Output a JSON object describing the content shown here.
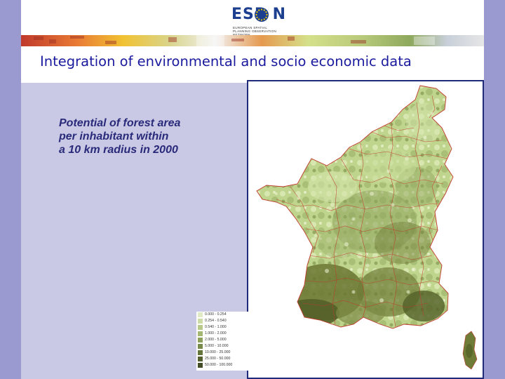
{
  "header": {
    "logo_text": "ESP N",
    "logo_subtitle": "EUROPEAN SPATIAL PLANNING OBSERVATION NETWORK"
  },
  "title": "Integration of environmental and socio economic data",
  "map": {
    "subtitle_lines": [
      "Potential of forest area",
      "per inhabitant within",
      "a 10 km radius in 2000"
    ],
    "region_colors": {
      "light": "#cfe2a4",
      "mid": "#a8bd72",
      "dark": "#6f7c38",
      "darkest": "#535f28",
      "border": "#c0392b"
    }
  },
  "legend": {
    "items": [
      {
        "label": "0.000 - 0.254",
        "color": "#e0eac4"
      },
      {
        "label": "0.254 - 0.540",
        "color": "#cddca4"
      },
      {
        "label": "0.540 - 1.000",
        "color": "#b8c98a"
      },
      {
        "label": "1.000 - 2.000",
        "color": "#a3b672"
      },
      {
        "label": "2.000 - 5.000",
        "color": "#8d9f5c"
      },
      {
        "label": "5.000 - 10.000",
        "color": "#778a4a"
      },
      {
        "label": "10.000 - 25.000",
        "color": "#64753c"
      },
      {
        "label": "25.000 - 50.000",
        "color": "#535f2f"
      },
      {
        "label": "50.000 - 100.000",
        "color": "#434d25"
      }
    ]
  }
}
